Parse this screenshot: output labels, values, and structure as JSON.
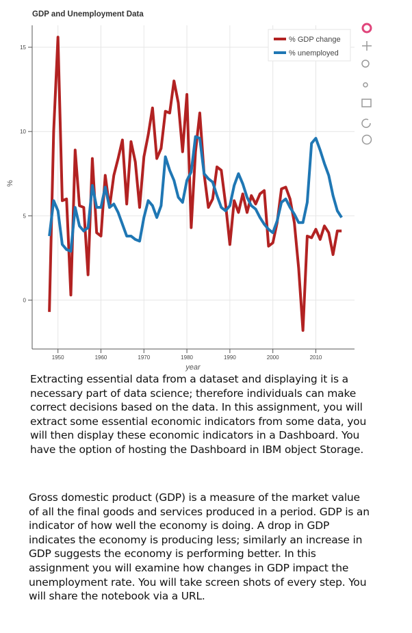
{
  "chart_data": {
    "type": "line",
    "title": "GDP and Unemployment Data",
    "x_label": "year",
    "y_label": "%",
    "x": [
      1948,
      1949,
      1950,
      1951,
      1952,
      1953,
      1954,
      1955,
      1956,
      1957,
      1958,
      1959,
      1960,
      1961,
      1962,
      1963,
      1964,
      1965,
      1966,
      1967,
      1968,
      1969,
      1970,
      1971,
      1972,
      1973,
      1974,
      1975,
      1976,
      1977,
      1978,
      1979,
      1980,
      1981,
      1982,
      1983,
      1984,
      1985,
      1986,
      1987,
      1988,
      1989,
      1990,
      1991,
      1992,
      1993,
      1994,
      1995,
      1996,
      1997,
      1998,
      1999,
      2000,
      2001,
      2002,
      2003,
      2004,
      2005,
      2006,
      2007,
      2008,
      2009,
      2010,
      2011,
      2012,
      2013,
      2014,
      2015,
      2016
    ],
    "series": [
      {
        "name": "% GDP change",
        "color": "#b22222",
        "values": [
          -0.7,
          10.0,
          15.6,
          5.9,
          6.0,
          0.3,
          8.9,
          5.6,
          5.5,
          1.5,
          8.4,
          4.0,
          3.8,
          7.4,
          5.5,
          7.4,
          8.4,
          9.5,
          5.7,
          9.4,
          8.2,
          5.5,
          8.5,
          9.8,
          11.4,
          8.4,
          9.0,
          11.2,
          11.1,
          13.0,
          11.7,
          8.8,
          12.2,
          4.3,
          8.8,
          11.1,
          7.5,
          5.5,
          6.0,
          7.9,
          7.7,
          5.7,
          3.3,
          5.9,
          5.2,
          6.3,
          5.2,
          6.2,
          5.7,
          6.3,
          6.5,
          3.2,
          3.4,
          4.6,
          6.6,
          6.7,
          6.0,
          4.6,
          1.9,
          -1.8,
          3.8,
          3.7,
          4.2,
          3.6,
          4.4,
          4.0,
          2.7,
          4.1,
          4.1
        ]
      },
      {
        "name": "% unemployed",
        "color": "#1f77b4",
        "values": [
          3.8,
          5.9,
          5.3,
          3.3,
          3.0,
          2.9,
          5.5,
          4.4,
          4.1,
          4.3,
          6.8,
          5.5,
          5.5,
          6.7,
          5.5,
          5.7,
          5.2,
          4.5,
          3.8,
          3.8,
          3.6,
          3.5,
          4.9,
          5.9,
          5.6,
          4.9,
          5.6,
          8.5,
          7.7,
          7.1,
          6.1,
          5.8,
          7.1,
          7.6,
          9.7,
          9.6,
          7.5,
          7.2,
          7.0,
          6.2,
          5.5,
          5.3,
          5.6,
          6.8,
          7.5,
          6.9,
          6.1,
          5.6,
          5.4,
          4.9,
          4.5,
          4.2,
          4.0,
          4.7,
          5.8,
          6.0,
          5.5,
          5.1,
          4.6,
          4.6,
          5.8,
          9.3,
          9.6,
          8.9,
          8.1,
          7.4,
          6.2,
          5.3,
          4.9
        ]
      }
    ],
    "xlim": [
      1944,
      2019
    ],
    "ylim": [
      -2.9,
      16.3
    ],
    "xticks": [
      1950,
      1960,
      1970,
      1980,
      1990,
      2000,
      2010
    ],
    "yticks": [
      0,
      5,
      10,
      15
    ],
    "grid": true,
    "legend": "top_right"
  },
  "paragraphs": [
    "Extracting essential data from a dataset and displaying it is a necessary part of data science; therefore individuals can make correct decisions based on the data. In this assignment, you will extract some essential economic indicators from some data, you will then display these economic indicators in a Dashboard. You have the option of hosting the Dashboard in IBM object Storage.",
    "Gross domestic product (GDP) is a measure of the market value of all the final goods and services produced in a period. GDP is an indicator of how well the economy is doing. A drop in GDP indicates the economy is producing less; similarly an increase in GDP suggests the economy is performing better. In this assignment you will examine how changes in GDP impact the unemployment rate. You will take screen shots of every step. You will share the notebook via a URL."
  ]
}
